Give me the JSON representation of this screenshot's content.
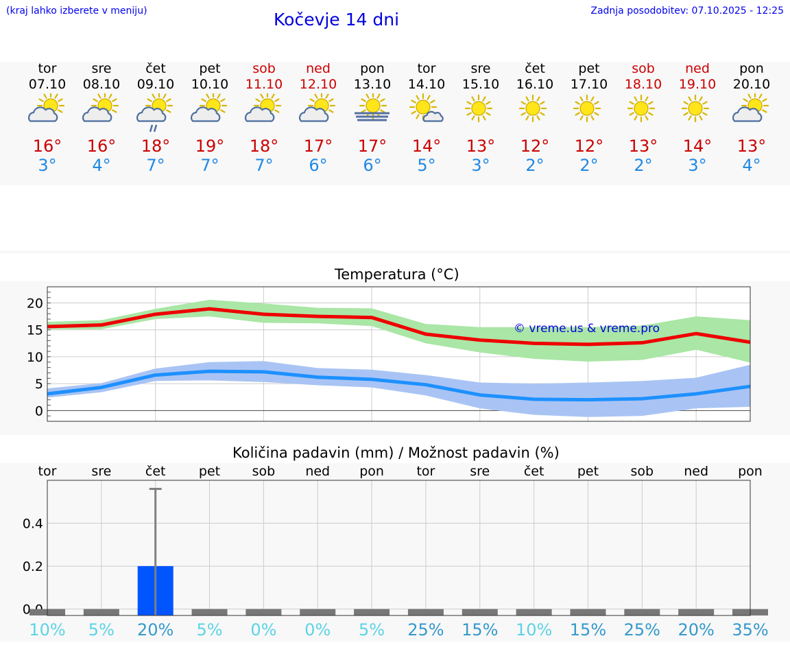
{
  "header": {
    "left_note": "(kraj lahko izberete v meniju)",
    "title": "Kočevje 14 dni",
    "updated": "Zadnja posodobitev: 07.10.2025 - 12:25"
  },
  "days": [
    {
      "name": "tor",
      "date": "07.10",
      "weekend": false,
      "icon": "sun-cloud-icon",
      "tmax": "16°",
      "tmin": "3°"
    },
    {
      "name": "sre",
      "date": "08.10",
      "weekend": false,
      "icon": "sun-cloud-icon",
      "tmax": "16°",
      "tmin": "4°"
    },
    {
      "name": "čet",
      "date": "09.10",
      "weekend": false,
      "icon": "sun-cloud-rain-icon",
      "tmax": "18°",
      "tmin": "7°"
    },
    {
      "name": "pet",
      "date": "10.10",
      "weekend": false,
      "icon": "sun-cloud-icon",
      "tmax": "19°",
      "tmin": "7°"
    },
    {
      "name": "sob",
      "date": "11.10",
      "weekend": true,
      "icon": "sun-cloud-icon",
      "tmax": "18°",
      "tmin": "7°"
    },
    {
      "name": "ned",
      "date": "12.10",
      "weekend": true,
      "icon": "sun-cloud-icon",
      "tmax": "17°",
      "tmin": "6°"
    },
    {
      "name": "pon",
      "date": "13.10",
      "weekend": false,
      "icon": "sun-fog-icon",
      "tmax": "17°",
      "tmin": "6°"
    },
    {
      "name": "tor",
      "date": "14.10",
      "weekend": false,
      "icon": "sun-small-cloud-icon",
      "tmax": "14°",
      "tmin": "5°"
    },
    {
      "name": "sre",
      "date": "15.10",
      "weekend": false,
      "icon": "sun-icon",
      "tmax": "13°",
      "tmin": "3°"
    },
    {
      "name": "čet",
      "date": "16.10",
      "weekend": false,
      "icon": "sun-icon",
      "tmax": "12°",
      "tmin": "2°"
    },
    {
      "name": "pet",
      "date": "17.10",
      "weekend": false,
      "icon": "sun-icon",
      "tmax": "12°",
      "tmin": "2°"
    },
    {
      "name": "sob",
      "date": "18.10",
      "weekend": true,
      "icon": "sun-icon",
      "tmax": "13°",
      "tmin": "2°"
    },
    {
      "name": "ned",
      "date": "19.10",
      "weekend": true,
      "icon": "sun-icon",
      "tmax": "14°",
      "tmin": "3°"
    },
    {
      "name": "pon",
      "date": "20.10",
      "weekend": false,
      "icon": "sun-cloud-icon",
      "tmax": "13°",
      "tmin": "4°"
    }
  ],
  "chart_data": [
    {
      "type": "line",
      "title": "Temperatura (°C)",
      "watermark": "© vreme.us & vreme.pro",
      "ylim": [
        -2,
        23
      ],
      "yticks": [
        0,
        5,
        10,
        15,
        20
      ],
      "x": [
        0,
        1,
        2,
        3,
        4,
        5,
        6,
        7,
        8,
        9,
        10,
        11,
        12,
        13
      ],
      "grid": true,
      "colors": {
        "max_line": "#ee0000",
        "max_band": "#aae6a5",
        "min_line": "#1e90ff",
        "min_band": "#a9c4f4"
      },
      "series": [
        {
          "values": [
            15.6,
            15.9,
            17.9,
            18.9,
            17.9,
            17.5,
            17.3,
            14.2,
            13.1,
            12.5,
            12.3,
            12.6,
            14.3,
            12.7
          ],
          "band": [
            [
              15.1,
              16.5
            ],
            [
              15.1,
              16.8
            ],
            [
              17.0,
              18.9
            ],
            [
              17.5,
              20.6
            ],
            [
              16.3,
              19.9
            ],
            [
              16.2,
              19.1
            ],
            [
              15.7,
              19.0
            ],
            [
              12.5,
              16.1
            ],
            [
              10.8,
              15.5
            ],
            [
              9.6,
              15.5
            ],
            [
              9.1,
              15.5
            ],
            [
              9.4,
              15.8
            ],
            [
              11.3,
              17.5
            ],
            [
              8.9,
              16.8
            ]
          ]
        },
        {
          "values": [
            3.1,
            4.3,
            6.6,
            7.3,
            7.2,
            6.2,
            5.8,
            4.8,
            2.9,
            2.1,
            2.0,
            2.2,
            3.1,
            4.5
          ],
          "band": [
            [
              2.4,
              4.1
            ],
            [
              3.4,
              5.1
            ],
            [
              5.5,
              7.8
            ],
            [
              5.6,
              9.0
            ],
            [
              5.3,
              9.2
            ],
            [
              4.7,
              7.9
            ],
            [
              4.3,
              7.6
            ],
            [
              2.8,
              6.6
            ],
            [
              0.4,
              5.2
            ],
            [
              -0.8,
              5.0
            ],
            [
              -1.2,
              5.2
            ],
            [
              -1.0,
              5.5
            ],
            [
              0.4,
              6.1
            ],
            [
              0.7,
              8.5
            ]
          ]
        }
      ]
    },
    {
      "type": "bar",
      "title": "Količina padavin (mm) / Možnost padavin (%)",
      "categories": [
        "tor",
        "sre",
        "čet",
        "pet",
        "sob",
        "ned",
        "pon",
        "tor",
        "sre",
        "čet",
        "pet",
        "sob",
        "ned",
        "pon"
      ],
      "ylim": [
        -0.03,
        0.6
      ],
      "yticks": [
        0.0,
        0.2,
        0.4
      ],
      "ytick_labels": [
        "0.0",
        "0.2",
        "0.4"
      ],
      "values": [
        0,
        0,
        0.2,
        0,
        0,
        0,
        0,
        0,
        0,
        0,
        0,
        0,
        0,
        0
      ],
      "error_high": [
        0,
        0,
        0.56,
        0,
        0,
        0,
        0,
        0,
        0,
        0,
        0,
        0,
        0,
        0
      ],
      "probability": [
        "10%",
        "5%",
        "20%",
        "5%",
        "0%",
        "0%",
        "5%",
        "25%",
        "15%",
        "10%",
        "15%",
        "25%",
        "20%",
        "35%"
      ],
      "colors": {
        "bar": "#0055ff",
        "error": "#808080",
        "prob_low": "#5bd3e6",
        "prob_high": "#3399cc"
      }
    }
  ]
}
